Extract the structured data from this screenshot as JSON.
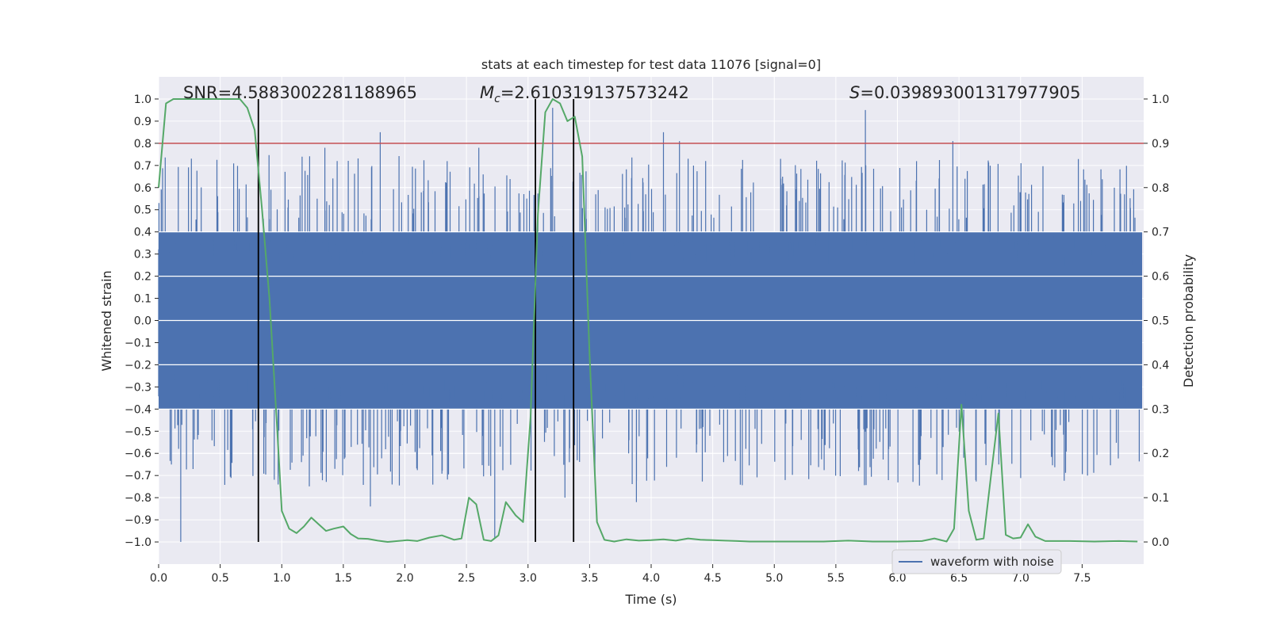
{
  "chart_data": {
    "type": "line",
    "title": "stats at each timestep for test data 11076 [signal=0]",
    "xlabel": "Time (s)",
    "ylabel_left": "Whitened strain",
    "ylabel_right": "Detection probability",
    "xlim": [
      0.0,
      8.0
    ],
    "ylim_left": [
      -1.1,
      1.1
    ],
    "ylim_right": [
      -0.05,
      1.05
    ],
    "x_ticks": [
      0.0,
      0.5,
      1.0,
      1.5,
      2.0,
      2.5,
      3.0,
      3.5,
      4.0,
      4.5,
      5.0,
      5.5,
      6.0,
      6.5,
      7.0,
      7.5
    ],
    "x_tick_labels": [
      "0.0",
      "0.5",
      "1.0",
      "1.5",
      "2.0",
      "2.5",
      "3.0",
      "3.5",
      "4.0",
      "4.5",
      "5.0",
      "5.5",
      "6.0",
      "6.5",
      "7.0",
      "7.5"
    ],
    "y_left_ticks": [
      -1.0,
      -0.9,
      -0.8,
      -0.7,
      -0.6,
      -0.5,
      -0.4,
      -0.3,
      -0.2,
      -0.1,
      0.0,
      0.1,
      0.2,
      0.3,
      0.4,
      0.5,
      0.6,
      0.7,
      0.8,
      0.9,
      1.0
    ],
    "y_left_tick_labels": [
      "−1.0",
      "−0.9",
      "−0.8",
      "−0.7",
      "−0.6",
      "−0.5",
      "−0.4",
      "−0.3",
      "−0.2",
      "−0.1",
      "0.0",
      "0.1",
      "0.2",
      "0.3",
      "0.4",
      "0.5",
      "0.6",
      "0.7",
      "0.8",
      "0.9",
      "1.0"
    ],
    "y_right_ticks": [
      0.0,
      0.1,
      0.2,
      0.3,
      0.4,
      0.5,
      0.6,
      0.7,
      0.8,
      0.9,
      1.0
    ],
    "y_right_tick_labels": [
      "0.0",
      "0.1",
      "0.2",
      "0.3",
      "0.4",
      "0.5",
      "0.6",
      "0.7",
      "0.8",
      "0.9",
      "1.0"
    ],
    "annotations": {
      "snr": "SNR=4.5883002281188965",
      "mc_symbol": "M",
      "mc_subscript": "c",
      "mc_value": "=2.610319137573242",
      "s_symbol": "S",
      "s_value": "=0.039893001317977905"
    },
    "threshold_line": {
      "y_right": 0.9,
      "color": "#c44e52"
    },
    "vertical_markers": [
      0.81,
      3.06,
      3.37
    ],
    "legend": {
      "label": "waveform with noise",
      "placement": "lower-right"
    },
    "colors": {
      "waveform": "#4c72b0",
      "probability": "#55a868",
      "markers": "#000000",
      "background": "#eaeaf2"
    },
    "series": [
      {
        "name": "waveform with noise",
        "axis": "left",
        "band": {
          "typical_abs": 0.4,
          "max_peaks": [
            1.0,
            0.98
          ],
          "min_peaks": [
            -1.0,
            -0.98
          ]
        },
        "spikes": [
          [
            0.18,
            -1.0
          ],
          [
            1.8,
            0.85
          ],
          [
            2.73,
            -0.98
          ],
          [
            3.2,
            0.96
          ],
          [
            3.3,
            -0.8
          ],
          [
            4.1,
            0.85
          ],
          [
            5.74,
            0.95
          ],
          [
            6.45,
            0.81
          ],
          [
            1.72,
            -0.84
          ],
          [
            3.88,
            -0.82
          ],
          [
            2.6,
            0.78
          ],
          [
            3.55,
            0.57
          ],
          [
            4.3,
            0.73
          ],
          [
            4.23,
            0.81
          ],
          [
            1.35,
            0.78
          ]
        ]
      },
      {
        "name": "detection probability",
        "axis": "right",
        "x": [
          0.0,
          0.06,
          0.12,
          0.18,
          0.24,
          0.3,
          0.36,
          0.42,
          0.48,
          0.54,
          0.6,
          0.66,
          0.72,
          0.78,
          0.84,
          0.9,
          0.96,
          1.0,
          1.06,
          1.12,
          1.18,
          1.24,
          1.3,
          1.36,
          1.42,
          1.5,
          1.56,
          1.62,
          1.7,
          1.78,
          1.86,
          1.94,
          2.02,
          2.1,
          2.2,
          2.3,
          2.4,
          2.46,
          2.52,
          2.58,
          2.64,
          2.7,
          2.76,
          2.82,
          2.9,
          2.96,
          3.02,
          3.08,
          3.14,
          3.2,
          3.26,
          3.32,
          3.38,
          3.44,
          3.5,
          3.56,
          3.62,
          3.7,
          3.8,
          3.9,
          4.0,
          4.1,
          4.2,
          4.3,
          4.4,
          4.5,
          4.6,
          4.7,
          4.8,
          5.0,
          5.2,
          5.4,
          5.6,
          5.8,
          6.0,
          6.2,
          6.3,
          6.4,
          6.46,
          6.52,
          6.58,
          6.64,
          6.7,
          6.76,
          6.82,
          6.88,
          6.94,
          7.0,
          7.06,
          7.12,
          7.2,
          7.4,
          7.6,
          7.8,
          7.95
        ],
        "values": [
          0.8,
          0.99,
          1.0,
          1.0,
          1.0,
          1.0,
          1.0,
          1.0,
          1.0,
          1.0,
          1.0,
          1.0,
          0.98,
          0.93,
          0.75,
          0.55,
          0.27,
          0.07,
          0.03,
          0.02,
          0.035,
          0.055,
          0.04,
          0.025,
          0.03,
          0.035,
          0.018,
          0.008,
          0.007,
          0.003,
          0.0,
          0.002,
          0.004,
          0.002,
          0.01,
          0.015,
          0.005,
          0.008,
          0.1,
          0.085,
          0.005,
          0.002,
          0.015,
          0.09,
          0.06,
          0.045,
          0.28,
          0.74,
          0.97,
          1.0,
          0.99,
          0.95,
          0.96,
          0.87,
          0.42,
          0.045,
          0.005,
          0.001,
          0.006,
          0.003,
          0.004,
          0.006,
          0.003,
          0.008,
          0.005,
          0.004,
          0.003,
          0.002,
          0.001,
          0.001,
          0.001,
          0.001,
          0.003,
          0.001,
          0.001,
          0.002,
          0.008,
          0.001,
          0.03,
          0.31,
          0.07,
          0.005,
          0.008,
          0.15,
          0.29,
          0.016,
          0.008,
          0.01,
          0.04,
          0.012,
          0.002,
          0.002,
          0.001,
          0.002,
          0.001
        ]
      }
    ]
  }
}
